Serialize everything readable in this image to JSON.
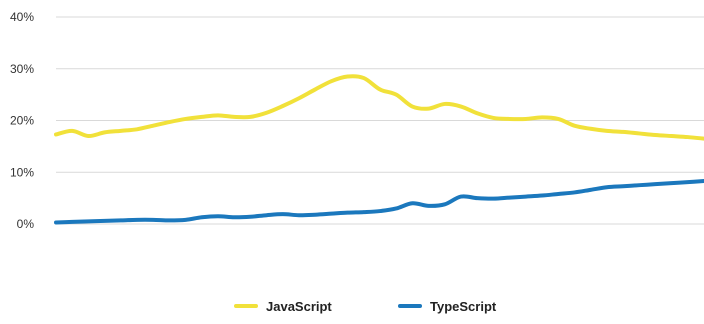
{
  "chart_data": {
    "type": "line",
    "title": "",
    "xlabel": "",
    "ylabel": "",
    "ylim": [
      0,
      40
    ],
    "y_ticks": [
      0,
      10,
      20,
      30,
      40
    ],
    "y_tick_labels": [
      "0%",
      "10%",
      "20%",
      "30%",
      "40%"
    ],
    "grid": true,
    "legend_position": "bottom",
    "x": [
      0,
      1,
      2,
      3,
      4,
      5,
      6,
      7,
      8,
      9,
      10,
      11,
      12,
      13,
      14,
      15,
      16,
      17,
      18,
      19,
      20,
      21,
      22,
      23,
      24,
      25,
      26,
      27,
      28,
      29,
      30,
      31,
      32,
      33,
      34,
      35,
      36,
      37,
      38,
      39,
      40
    ],
    "series": [
      {
        "name": "JavaScript",
        "color": "#f1e13a",
        "values": [
          17.3,
          18.0,
          17.0,
          17.7,
          18.0,
          18.3,
          19.0,
          19.7,
          20.3,
          20.7,
          21.0,
          20.7,
          20.7,
          21.5,
          22.8,
          24.3,
          26.0,
          27.6,
          28.5,
          28.2,
          26.0,
          25.0,
          22.7,
          22.3,
          23.2,
          22.7,
          21.4,
          20.5,
          20.3,
          20.3,
          20.6,
          20.3,
          19.0,
          18.4,
          18.0,
          17.8,
          17.5,
          17.2,
          17.0,
          16.8,
          16.5
        ],
        "values_note": ""
      },
      {
        "name": "TypeScript",
        "color": "#1b78bd",
        "values": [
          0.3,
          0.4,
          0.5,
          0.6,
          0.7,
          0.8,
          0.8,
          0.7,
          0.8,
          1.3,
          1.5,
          1.3,
          1.4,
          1.7,
          1.9,
          1.7,
          1.8,
          2.0,
          2.2,
          2.3,
          2.5,
          3.0,
          4.0,
          3.5,
          3.8,
          5.3,
          5.0,
          4.9,
          5.1,
          5.3,
          5.5,
          5.8,
          6.1,
          6.6,
          7.1,
          7.3,
          7.5,
          7.7,
          7.9,
          8.1,
          8.3
        ],
        "values_note": ""
      }
    ]
  }
}
